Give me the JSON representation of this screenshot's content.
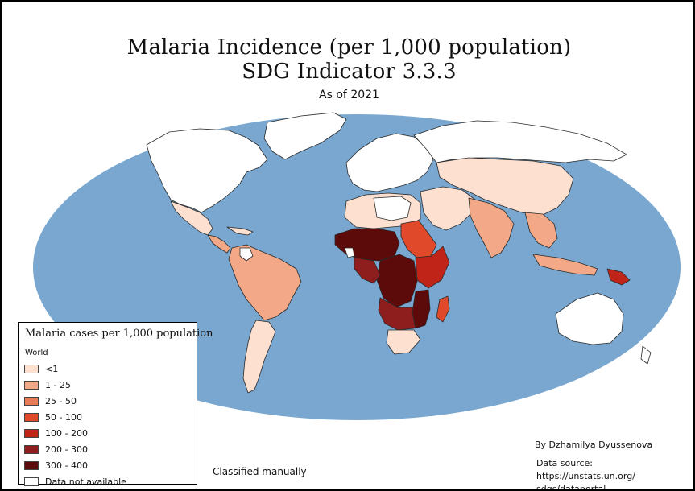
{
  "title_line1": "Malaria Incidence (per 1,000 population)",
  "title_line2": "SDG Indicator 3.3.3",
  "subtitle": "As of 2021",
  "colors": {
    "ocean": "#7aa7cf",
    "no_data": "#ffffff",
    "border": "#2a2a2a"
  },
  "legend": {
    "title": "Malaria cases per 1,000 population",
    "subtitle": "World",
    "items": [
      {
        "label": "<1",
        "color": "#fde0d0"
      },
      {
        "label": "1 - 25",
        "color": "#f3a987"
      },
      {
        "label": "25 - 50",
        "color": "#e97a55"
      },
      {
        "label": "50 - 100",
        "color": "#e0492a"
      },
      {
        "label": "100 - 200",
        "color": "#c02418"
      },
      {
        "label": "200 - 300",
        "color": "#8e1d1d"
      },
      {
        "label": "300 - 400",
        "color": "#5c0a0a"
      },
      {
        "label": "Data not available",
        "color": "#ffffff"
      }
    ]
  },
  "author": "By Dzhamilya Dyussenova",
  "method_note": "Classified manually",
  "source_line1": "Data source: https://unstats.un.org/",
  "source_line2": "sdgs/dataportal"
}
